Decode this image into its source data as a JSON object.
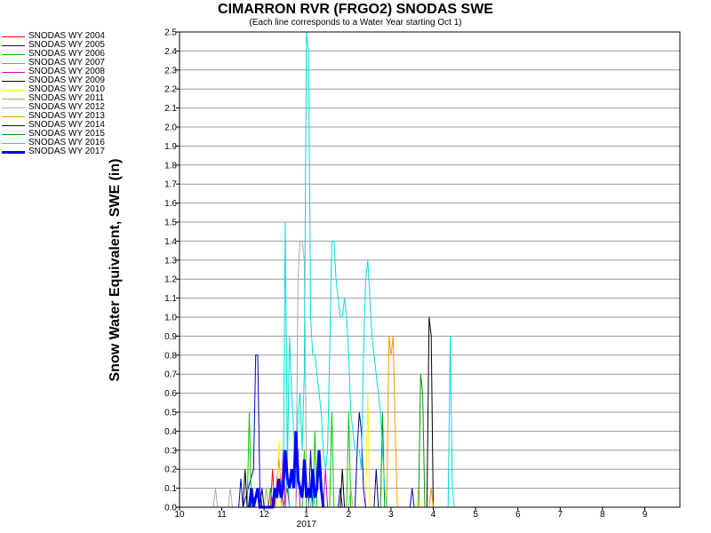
{
  "chart_data": {
    "type": "line",
    "title": "CIMARRON RVR (FRGO2) SNODAS SWE",
    "subtitle": "(Each line corresponds to a Water Year starting Oct 1)",
    "ylabel": "Snow Water Equivalent, SWE (in)",
    "xlabel": "",
    "ylim": [
      0,
      2.5
    ],
    "y_ticks": [
      "0.0",
      "0.1",
      "0.2",
      "0.3",
      "0.4",
      "0.5",
      "0.6",
      "0.7",
      "0.8",
      "0.9",
      "1.0",
      "1.1",
      "1.2",
      "1.3",
      "1.4",
      "1.5",
      "1.6",
      "1.7",
      "1.8",
      "1.9",
      "2.0",
      "2.1",
      "2.2",
      "2.3",
      "2.4",
      "2.5"
    ],
    "x_ticks": [
      "10",
      "11",
      "12",
      "1",
      "2",
      "3",
      "4",
      "5",
      "6",
      "7",
      "8",
      "9"
    ],
    "x_tick_months": [
      0,
      1,
      2,
      3,
      4,
      5,
      6,
      7,
      8,
      9,
      10,
      11
    ],
    "x_sub_label": "2017",
    "grid": true,
    "legend_position": "left",
    "series": [
      {
        "name": "SNODAS WY 2004",
        "color": "#ff0000",
        "width": 1,
        "points": [
          [
            2.15,
            0
          ],
          [
            2.2,
            0.2
          ],
          [
            2.25,
            0
          ],
          [
            2.35,
            0.25
          ],
          [
            2.45,
            0
          ],
          [
            2.55,
            0.1
          ],
          [
            2.6,
            0
          ]
        ]
      },
      {
        "name": "SNODAS WY 2005",
        "color": "#0000cc",
        "width": 1,
        "points": [
          [
            1.4,
            0
          ],
          [
            1.45,
            0.15
          ],
          [
            1.5,
            0
          ],
          [
            1.75,
            0.2
          ],
          [
            1.8,
            0.8
          ],
          [
            1.85,
            0.8
          ],
          [
            1.9,
            0.1
          ],
          [
            1.95,
            0
          ],
          [
            3.05,
            0
          ],
          [
            3.1,
            0.3
          ],
          [
            3.15,
            0
          ],
          [
            3.75,
            0
          ],
          [
            3.8,
            0.1
          ],
          [
            3.85,
            0
          ],
          [
            5.45,
            0
          ],
          [
            5.5,
            0.1
          ],
          [
            5.55,
            0
          ]
        ]
      },
      {
        "name": "SNODAS WY 2006",
        "color": "#00cc00",
        "width": 1,
        "points": [
          [
            1.6,
            0
          ],
          [
            1.65,
            0.5
          ],
          [
            1.7,
            0
          ],
          [
            2.9,
            0
          ],
          [
            2.95,
            0.3
          ],
          [
            3.0,
            0
          ],
          [
            3.15,
            0
          ],
          [
            3.2,
            0.4
          ],
          [
            3.25,
            0
          ],
          [
            3.55,
            0
          ],
          [
            3.6,
            0.5
          ],
          [
            3.65,
            0
          ],
          [
            3.95,
            0
          ],
          [
            4.0,
            0.5
          ],
          [
            4.05,
            0
          ]
        ]
      },
      {
        "name": "SNODAS WY 2007",
        "color": "#00cccc",
        "width": 1,
        "points": [
          [
            2.5,
            0
          ],
          [
            2.55,
            0.2
          ],
          [
            2.6,
            0
          ],
          [
            3.1,
            0
          ],
          [
            3.15,
            0.1
          ],
          [
            3.2,
            0
          ]
        ]
      },
      {
        "name": "SNODAS WY 2008",
        "color": "#cc00cc",
        "width": 1,
        "points": [
          [
            2.4,
            0
          ],
          [
            2.45,
            0.3
          ],
          [
            2.5,
            0
          ],
          [
            2.75,
            0
          ],
          [
            2.8,
            0.3
          ],
          [
            2.85,
            0
          ],
          [
            3.4,
            0
          ],
          [
            3.45,
            0.2
          ],
          [
            3.5,
            0
          ]
        ]
      },
      {
        "name": "SNODAS WY 2009",
        "color": "#000000",
        "width": 1,
        "points": [
          [
            1.5,
            0
          ],
          [
            1.55,
            0.2
          ],
          [
            1.6,
            0
          ],
          [
            3.8,
            0
          ],
          [
            3.85,
            0.2
          ],
          [
            3.9,
            0
          ],
          [
            5.85,
            0
          ],
          [
            5.9,
            1.0
          ],
          [
            5.95,
            0.9
          ],
          [
            6.0,
            0
          ]
        ]
      },
      {
        "name": "SNODAS WY 2010",
        "color": "#ffee00",
        "width": 1,
        "points": [
          [
            2.3,
            0
          ],
          [
            2.35,
            0.35
          ],
          [
            2.4,
            0
          ],
          [
            4.4,
            0
          ],
          [
            4.45,
            0.6
          ],
          [
            4.5,
            0
          ],
          [
            5.6,
            0
          ],
          [
            5.65,
            0.1
          ],
          [
            5.7,
            0
          ]
        ]
      },
      {
        "name": "SNODAS WY 2011",
        "color": "#aaaa66",
        "width": 1,
        "points": [
          [
            2.0,
            0
          ],
          [
            2.05,
            0.1
          ],
          [
            2.1,
            0
          ],
          [
            4.0,
            0
          ],
          [
            4.05,
            0.1
          ],
          [
            4.1,
            0
          ]
        ]
      },
      {
        "name": "SNODAS WY 2012",
        "color": "#aaaaaa",
        "width": 1,
        "points": [
          [
            0.8,
            0
          ],
          [
            0.85,
            0.1
          ],
          [
            0.9,
            0
          ],
          [
            1.15,
            0
          ],
          [
            1.2,
            0.1
          ],
          [
            1.25,
            0
          ],
          [
            2.75,
            0
          ],
          [
            2.8,
            1.2
          ],
          [
            2.85,
            1.4
          ],
          [
            2.9,
            1.4
          ],
          [
            2.95,
            1.3
          ],
          [
            3.0,
            0.2
          ],
          [
            3.05,
            0
          ]
        ]
      },
      {
        "name": "SNODAS WY 2013",
        "color": "#ff9900",
        "width": 1,
        "points": [
          [
            4.9,
            0
          ],
          [
            4.95,
            0.9
          ],
          [
            5.0,
            0.8
          ],
          [
            5.05,
            0.9
          ],
          [
            5.1,
            0.4
          ],
          [
            5.15,
            0
          ],
          [
            5.9,
            0
          ],
          [
            5.95,
            0.1
          ],
          [
            6.0,
            0
          ]
        ]
      },
      {
        "name": "SNODAS WY 2014",
        "color": "#000099",
        "width": 1,
        "points": [
          [
            1.9,
            0
          ],
          [
            1.95,
            0.1
          ],
          [
            2.0,
            0
          ],
          [
            4.15,
            0
          ],
          [
            4.2,
            0.3
          ],
          [
            4.25,
            0.5
          ],
          [
            4.3,
            0.4
          ],
          [
            4.35,
            0.1
          ],
          [
            4.4,
            0
          ],
          [
            4.6,
            0
          ],
          [
            4.65,
            0.2
          ],
          [
            4.7,
            0
          ]
        ]
      },
      {
        "name": "SNODAS WY 2015",
        "color": "#009900",
        "width": 1,
        "points": [
          [
            2.1,
            0
          ],
          [
            2.15,
            0.1
          ],
          [
            2.2,
            0
          ],
          [
            4.75,
            0
          ],
          [
            4.8,
            0.5
          ],
          [
            4.85,
            0
          ],
          [
            5.65,
            0
          ],
          [
            5.7,
            0.7
          ],
          [
            5.75,
            0.6
          ],
          [
            5.8,
            0
          ]
        ]
      },
      {
        "name": "SNODAS WY 2016",
        "color": "#00dddd",
        "width": 1,
        "points": [
          [
            2.45,
            0
          ],
          [
            2.5,
            1.5
          ],
          [
            2.55,
            0.2
          ],
          [
            2.6,
            0.9
          ],
          [
            2.65,
            0.6
          ],
          [
            2.7,
            0.4
          ],
          [
            2.75,
            0.1
          ],
          [
            2.8,
            0.5
          ],
          [
            2.85,
            0.6
          ],
          [
            2.9,
            0.3
          ],
          [
            2.95,
            0.7
          ],
          [
            3.0,
            2.5
          ],
          [
            3.05,
            2.4
          ],
          [
            3.1,
            1.0
          ],
          [
            3.15,
            0.8
          ],
          [
            3.2,
            0.8
          ],
          [
            3.25,
            0.7
          ],
          [
            3.3,
            0.6
          ],
          [
            3.35,
            0.5
          ],
          [
            3.4,
            0.3
          ],
          [
            3.45,
            0.2
          ],
          [
            3.5,
            0.3
          ],
          [
            3.55,
            0.8
          ],
          [
            3.6,
            1.4
          ],
          [
            3.65,
            1.4
          ],
          [
            3.7,
            1.2
          ],
          [
            3.75,
            1.1
          ],
          [
            3.8,
            1.0
          ],
          [
            3.85,
            1.0
          ],
          [
            3.9,
            1.1
          ],
          [
            3.95,
            1.0
          ],
          [
            4.0,
            0.8
          ],
          [
            4.05,
            0.5
          ],
          [
            4.1,
            0.4
          ],
          [
            4.15,
            0.3
          ],
          [
            4.2,
            0.3
          ],
          [
            4.25,
            0.3
          ],
          [
            4.3,
            0.2
          ],
          [
            4.35,
            0.8
          ],
          [
            4.4,
            1.2
          ],
          [
            4.45,
            1.3
          ],
          [
            4.5,
            1.1
          ],
          [
            4.55,
            0.9
          ],
          [
            4.6,
            0.8
          ],
          [
            4.65,
            0.7
          ],
          [
            4.7,
            0.6
          ],
          [
            4.75,
            0.5
          ],
          [
            4.8,
            0.3
          ],
          [
            4.85,
            0.1
          ],
          [
            4.9,
            0
          ],
          [
            6.35,
            0
          ],
          [
            6.4,
            0.9
          ],
          [
            6.45,
            0.1
          ],
          [
            6.5,
            0
          ]
        ]
      },
      {
        "name": "SNODAS WY 2017",
        "color": "#0000ff",
        "width": 3,
        "points": [
          [
            1.65,
            0
          ],
          [
            1.7,
            0.1
          ],
          [
            1.75,
            0
          ],
          [
            1.85,
            0.1
          ],
          [
            1.9,
            0
          ],
          [
            2.2,
            0
          ],
          [
            2.25,
            0.1
          ],
          [
            2.3,
            0.05
          ],
          [
            2.35,
            0.15
          ],
          [
            2.4,
            0.05
          ],
          [
            2.45,
            0.1
          ],
          [
            2.5,
            0.3
          ],
          [
            2.55,
            0.15
          ],
          [
            2.6,
            0.1
          ],
          [
            2.65,
            0.2
          ],
          [
            2.7,
            0.1
          ],
          [
            2.75,
            0.4
          ],
          [
            2.8,
            0.15
          ],
          [
            2.85,
            0.1
          ],
          [
            2.9,
            0.05
          ],
          [
            2.95,
            0.25
          ],
          [
            3.0,
            0.05
          ],
          [
            3.05,
            0.1
          ],
          [
            3.1,
            0.05
          ],
          [
            3.15,
            0.2
          ],
          [
            3.2,
            0.05
          ],
          [
            3.25,
            0.1
          ],
          [
            3.3,
            0.3
          ],
          [
            3.35,
            0.1
          ],
          [
            3.4,
            0
          ]
        ]
      }
    ]
  }
}
